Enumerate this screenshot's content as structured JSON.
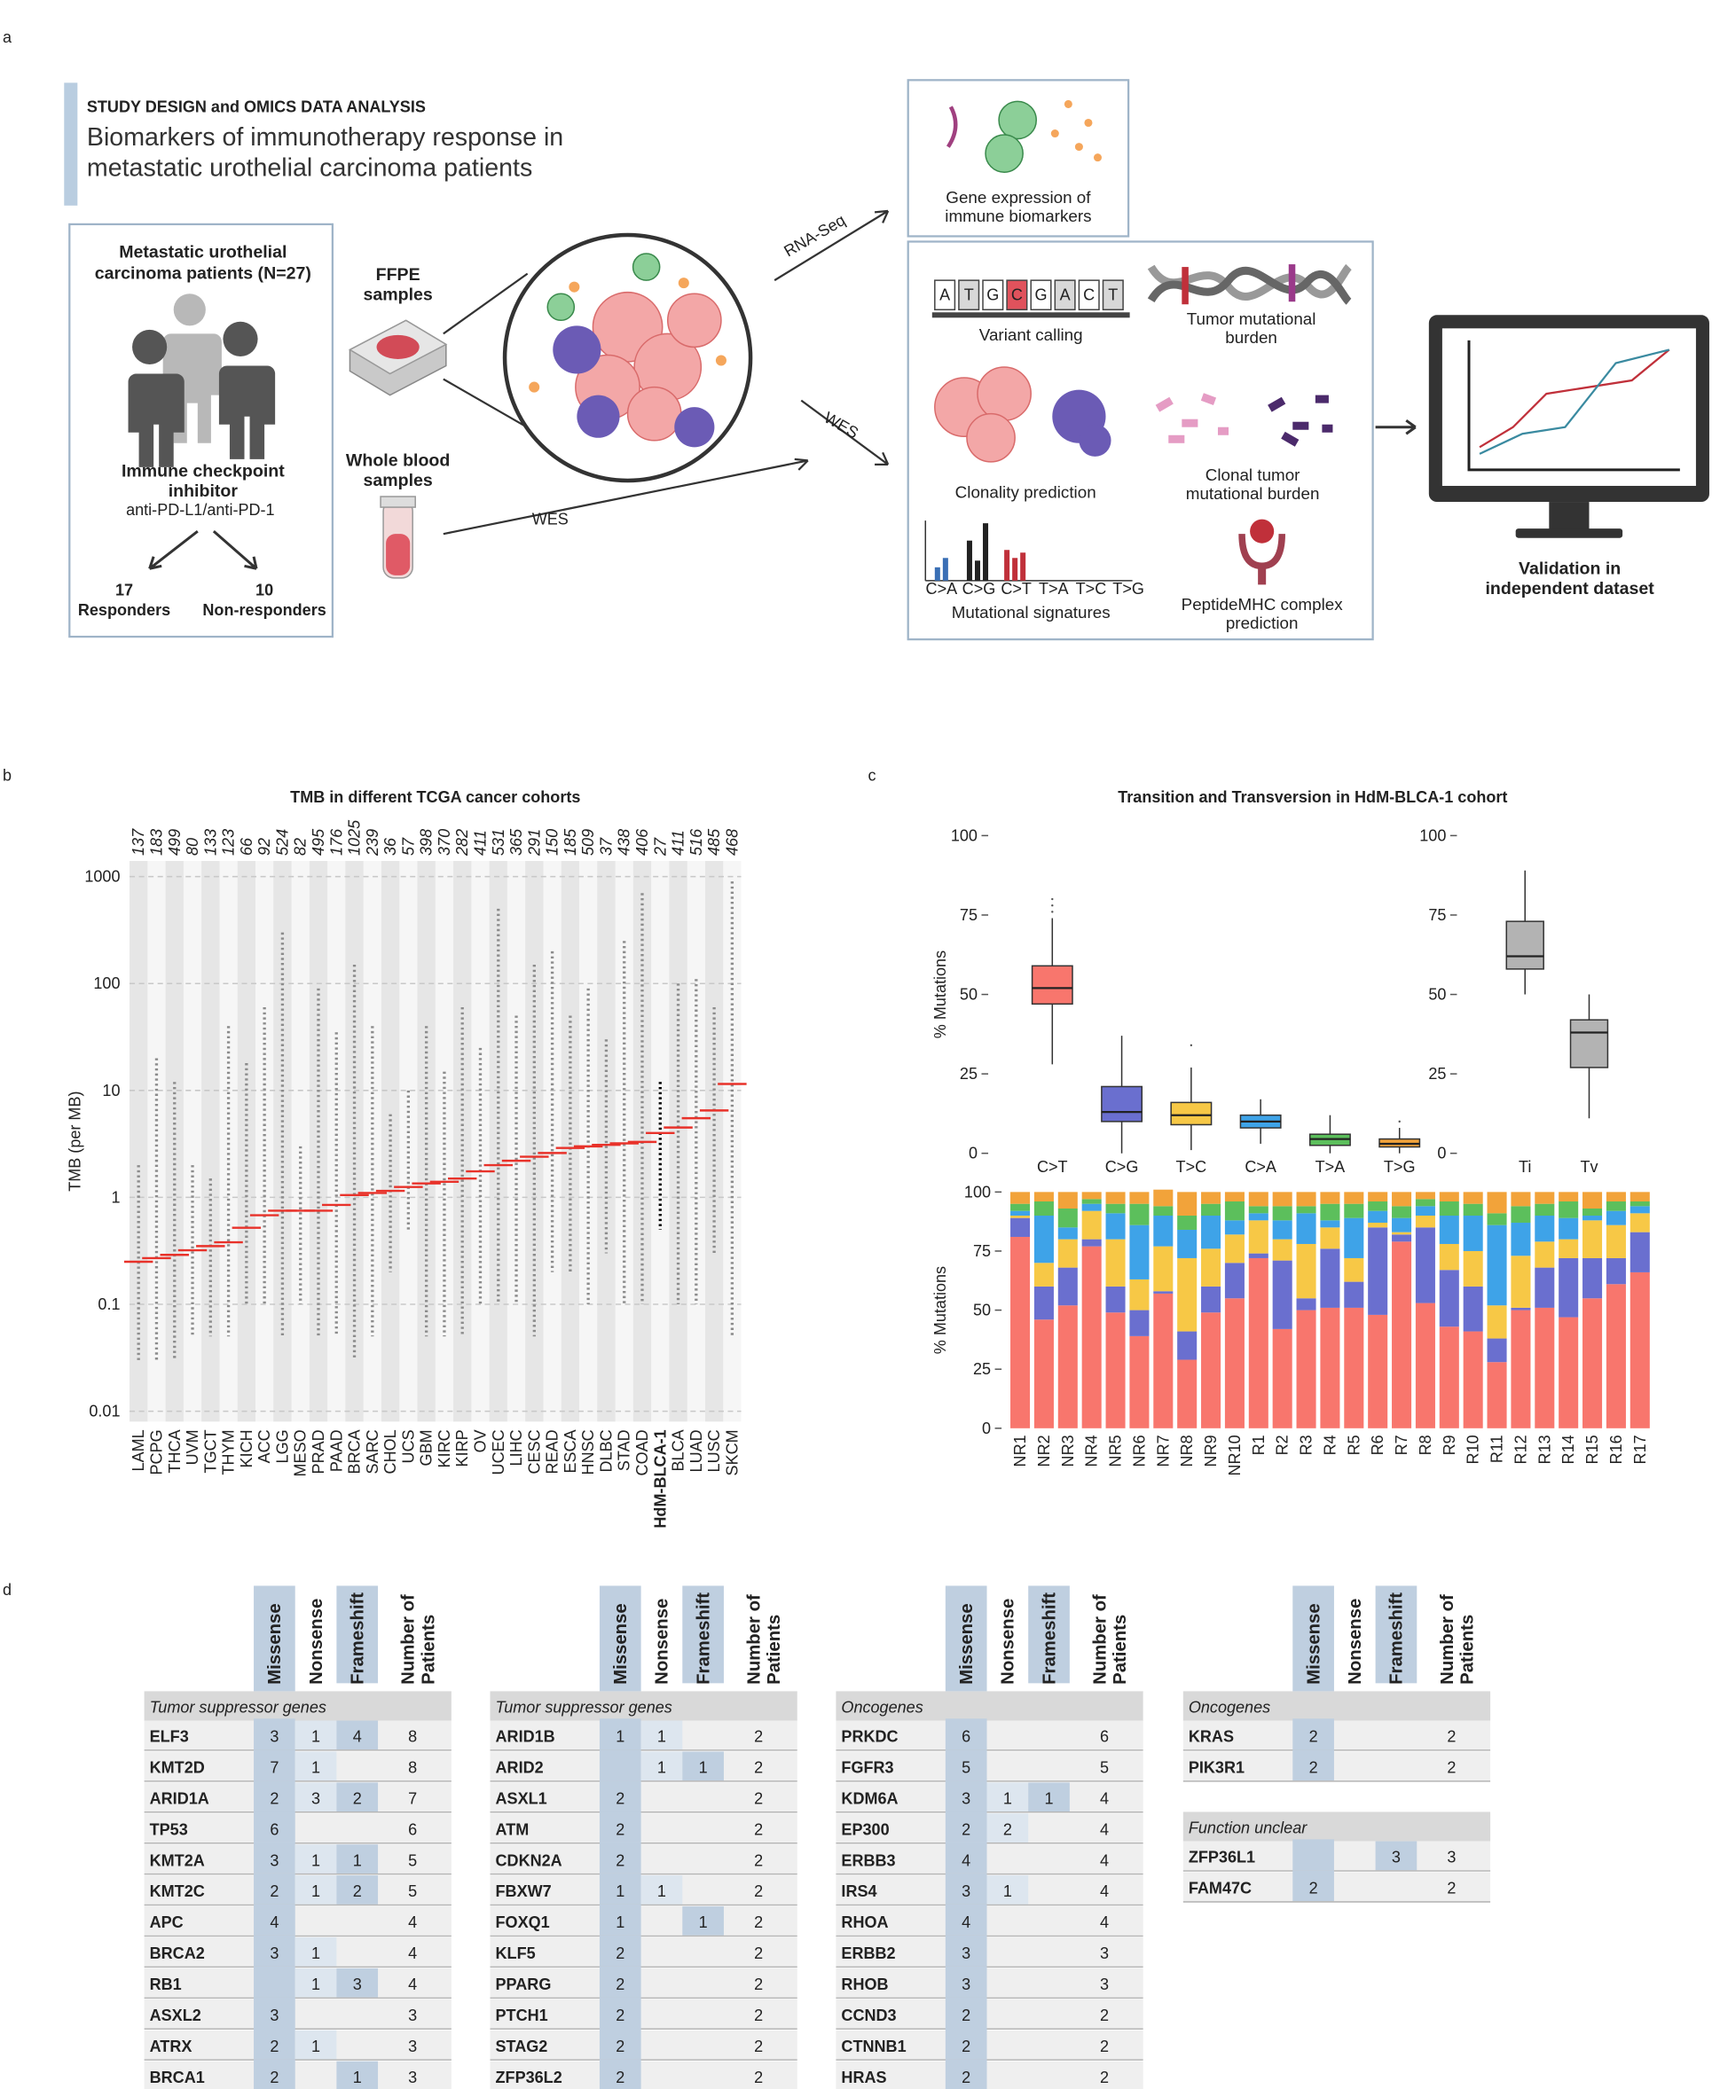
{
  "panel_labels": [
    "a",
    "b",
    "c",
    "d"
  ],
  "study_design": {
    "title": "STUDY DESIGN and OMICS DATA ANALYSIS",
    "subtitle": "Biomarkers of immunotherapy response in metastatic urothelial carcinoma patients",
    "patients": "Metastatic urothelial carcinoma patients (N=27)",
    "treatment": "Immune checkpoint inhibitor",
    "drugs": "anti-PD-L1/anti-PD-1",
    "groups": [
      {
        "count": 17,
        "label": "Responders"
      },
      {
        "count": 10,
        "label": "Non-responders"
      }
    ],
    "samples": [
      "FFPE samples",
      "Whole blood samples"
    ],
    "arrows": [
      "RNA-Seq",
      "WES",
      "WES"
    ],
    "expression": "Gene expression of immune biomarkers",
    "bases": [
      "A",
      "T",
      "G",
      "C",
      "G",
      "A",
      "C",
      "T"
    ],
    "analyses": [
      "Variant calling",
      "Tumor mutational burden",
      "Clonality prediction",
      "Clonal tumor mutational burden",
      "Mutational signatures",
      "PeptideMHC complex prediction"
    ],
    "signature_axis": [
      "C>A",
      "C>G",
      "C>T",
      "T>A",
      "T>C",
      "T>G"
    ],
    "validation": "Validation in independent dataset"
  },
  "chart_data": [
    {
      "type": "strip",
      "title": "TMB in different TCGA cancer cohorts",
      "y_label": "TMB (per MB)",
      "categories": [
        "LAML",
        "PCPG",
        "THCA",
        "UVM",
        "TGCT",
        "THYM",
        "KICH",
        "ACC",
        "LGG",
        "MESO",
        "PRAD",
        "PAAD",
        "BRCA",
        "SARC",
        "CHOL",
        "UCS",
        "GBM",
        "KIRC",
        "KIRP",
        "OV",
        "UCEC",
        "LIHC",
        "CESC",
        "READ",
        "ESCA",
        "HNSC",
        "DLBC",
        "STAD",
        "COAD",
        "HdM-BLCA-1",
        "BLCA",
        "LUAD",
        "LUSC",
        "SKCM"
      ],
      "sample_counts": [
        137,
        183,
        499,
        80,
        133,
        123,
        66,
        92,
        524,
        82,
        495,
        176,
        1025,
        239,
        36,
        57,
        398,
        370,
        282,
        411,
        531,
        365,
        291,
        150,
        185,
        509,
        37,
        438,
        406,
        27,
        411,
        516,
        485,
        468
      ],
      "medians": [
        0.25,
        0.27,
        0.29,
        0.32,
        0.35,
        0.38,
        0.52,
        0.68,
        0.75,
        0.75,
        0.75,
        0.85,
        1.05,
        1.1,
        1.15,
        1.25,
        1.35,
        1.4,
        1.5,
        1.75,
        2.0,
        2.2,
        2.4,
        2.6,
        2.9,
        3.0,
        3.1,
        3.2,
        3.3,
        4.0,
        4.5,
        5.5,
        6.5,
        11.5
      ],
      "mins": [
        0.03,
        0.03,
        0.03,
        0.05,
        0.05,
        0.05,
        0.1,
        0.1,
        0.05,
        0.1,
        0.05,
        0.05,
        0.03,
        0.05,
        0.2,
        0.5,
        0.05,
        0.05,
        0.05,
        0.1,
        0.1,
        0.1,
        0.05,
        0.2,
        0.2,
        0.1,
        0.3,
        0.1,
        0.1,
        0.5,
        0.1,
        0.1,
        0.3,
        0.05
      ],
      "maxs": [
        2,
        20,
        12,
        2,
        1.5,
        40,
        18,
        60,
        300,
        3,
        90,
        35,
        150,
        40,
        6,
        10,
        40,
        15,
        60,
        25,
        500,
        50,
        150,
        200,
        50,
        90,
        30,
        250,
        700,
        12,
        100,
        110,
        60,
        900
      ],
      "highlight": 29,
      "log_y": true,
      "ylim": [
        0.008,
        1400
      ],
      "yticks": [
        0.01,
        0.1,
        1,
        10,
        100,
        1000
      ],
      "grid": true,
      "point_color": "#8c8c8c",
      "highlight_color": "#000000",
      "median_color": "#e8322a"
    },
    {
      "type": "box",
      "title": "Transition and Transversion in HdM-BLCA-1 cohort",
      "y_label": "% Mutations",
      "categories": [
        "C>T",
        "C>G",
        "T>C",
        "C>A",
        "T>A",
        "T>G"
      ],
      "whisker_low": [
        28,
        0,
        1,
        3,
        0,
        0
      ],
      "q1": [
        47,
        10,
        9,
        8,
        2.5,
        2
      ],
      "median": [
        52,
        13,
        12,
        10,
        4.5,
        3
      ],
      "q3": [
        59,
        21,
        16,
        12,
        6,
        4.5
      ],
      "whisker_high": [
        74,
        37,
        27,
        17,
        12,
        8
      ],
      "outliers": [
        [
          76,
          78,
          80
        ],
        [],
        [
          34
        ],
        [],
        [],
        [
          10
        ]
      ],
      "colors": [
        "#f8766d",
        "#6a6fcf",
        "#f7c846",
        "#3ea3e8",
        "#5cbf5c",
        "#f2a33a"
      ],
      "ylim": [
        0,
        100
      ],
      "yticks": [
        0,
        25,
        50,
        75,
        100
      ]
    },
    {
      "type": "box",
      "categories": [
        "Ti",
        "Tv"
      ],
      "whisker_low": [
        50,
        11
      ],
      "q1": [
        58,
        27
      ],
      "median": [
        62,
        38
      ],
      "q3": [
        73,
        42
      ],
      "whisker_high": [
        89,
        50
      ],
      "outliers": [
        [],
        []
      ],
      "colors": [
        "#b3b3b3",
        "#b3b3b3"
      ],
      "ylim": [
        0,
        100
      ],
      "yticks": [
        0,
        25,
        50,
        75,
        100
      ]
    },
    {
      "type": "stacked_bar",
      "y_label": "% Mutations",
      "categories": [
        "NR1",
        "NR2",
        "NR3",
        "NR4",
        "NR5",
        "NR6",
        "NR7",
        "NR8",
        "NR9",
        "NR10",
        "R1",
        "R2",
        "R3",
        "R4",
        "R5",
        "R6",
        "R7",
        "R8",
        "R9",
        "R10",
        "R11",
        "R12",
        "R13",
        "R14",
        "R15",
        "R16",
        "R17"
      ],
      "series": [
        {
          "color": "#f8766d",
          "values": [
            81,
            46,
            52,
            77,
            49,
            39,
            57,
            29,
            49,
            55,
            72,
            42,
            50,
            51,
            51,
            48,
            79,
            53,
            43,
            41,
            28,
            50,
            51,
            47,
            55,
            61,
            66
          ]
        },
        {
          "color": "#6a6fcf",
          "values": [
            8,
            14,
            16,
            3,
            11,
            11,
            1,
            12,
            11,
            15,
            2,
            29,
            5,
            25,
            11,
            37,
            3,
            32,
            24,
            19,
            10,
            1,
            17,
            25,
            17,
            11,
            17
          ]
        },
        {
          "color": "#f7c846",
          "values": [
            1,
            10,
            12,
            12,
            20,
            13,
            19,
            31,
            16,
            12,
            14,
            9,
            23,
            9,
            10,
            2,
            1,
            5,
            11,
            15,
            14,
            22,
            11,
            8,
            16,
            14,
            8
          ]
        },
        {
          "color": "#3ea3e8",
          "values": [
            2,
            20,
            5,
            3,
            11,
            23,
            13,
            12,
            14,
            6,
            3,
            8,
            13,
            3,
            17,
            5,
            6,
            4,
            12,
            15,
            34,
            14,
            11,
            9,
            2,
            6,
            3
          ]
        },
        {
          "color": "#5cbf5c",
          "values": [
            3,
            6,
            8,
            2,
            4,
            9,
            4,
            6,
            5,
            8,
            3,
            6,
            3,
            7,
            6,
            4,
            5,
            3,
            6,
            5,
            5,
            7,
            5,
            7,
            3,
            4,
            2
          ]
        },
        {
          "color": "#f2a33a",
          "values": [
            5,
            4,
            7,
            3,
            5,
            5,
            7,
            10,
            5,
            4,
            6,
            6,
            6,
            5,
            5,
            4,
            6,
            3,
            4,
            5,
            9,
            6,
            5,
            4,
            7,
            4,
            4
          ]
        }
      ],
      "ylim": [
        0,
        100
      ],
      "yticks": [
        0,
        25,
        50,
        75,
        100
      ]
    }
  ],
  "tables": [
    {
      "columns": [
        "Missense",
        "Nonsense",
        "Frameshift",
        "Number of Patients"
      ],
      "sections": [
        {
          "heading": "Tumor suppressor genes",
          "rows": [
            [
              "ELF3",
              3,
              1,
              4,
              8
            ],
            [
              "KMT2D",
              7,
              1,
              null,
              8
            ],
            [
              "ARID1A",
              2,
              3,
              2,
              7
            ],
            [
              "TP53",
              6,
              null,
              null,
              6
            ],
            [
              "KMT2A",
              3,
              1,
              1,
              5
            ],
            [
              "KMT2C",
              2,
              1,
              2,
              5
            ],
            [
              "APC",
              4,
              null,
              null,
              4
            ],
            [
              "BRCA2",
              3,
              1,
              null,
              4
            ],
            [
              "RB1",
              null,
              1,
              3,
              4
            ],
            [
              "ASXL2",
              3,
              null,
              null,
              3
            ],
            [
              "ATRX",
              2,
              1,
              null,
              3
            ],
            [
              "BRCA1",
              2,
              null,
              1,
              3
            ]
          ]
        }
      ]
    },
    {
      "columns": [
        "Missense",
        "Nonsense",
        "Frameshift",
        "Number of Patients"
      ],
      "sections": [
        {
          "heading": "Tumor suppressor genes",
          "rows": [
            [
              "ARID1B",
              1,
              1,
              null,
              2
            ],
            [
              "ARID2",
              null,
              1,
              1,
              2
            ],
            [
              "ASXL1",
              2,
              null,
              null,
              2
            ],
            [
              "ATM",
              2,
              null,
              null,
              2
            ],
            [
              "CDKN2A",
              2,
              null,
              null,
              2
            ],
            [
              "FBXW7",
              1,
              1,
              null,
              2
            ],
            [
              "FOXQ1",
              1,
              null,
              1,
              2
            ],
            [
              "KLF5",
              2,
              null,
              null,
              2
            ],
            [
              "PPARG",
              2,
              null,
              null,
              2
            ],
            [
              "PTCH1",
              2,
              null,
              null,
              2
            ],
            [
              "STAG2",
              2,
              null,
              null,
              2
            ],
            [
              "ZFP36L2",
              2,
              null,
              null,
              2
            ]
          ]
        }
      ]
    },
    {
      "columns": [
        "Missense",
        "Nonsense",
        "Frameshift",
        "Number of Patients"
      ],
      "sections": [
        {
          "heading": "Oncogenes",
          "rows": [
            [
              "PRKDC",
              6,
              null,
              null,
              6
            ],
            [
              "FGFR3",
              5,
              null,
              null,
              5
            ],
            [
              "KDM6A",
              3,
              1,
              1,
              4
            ],
            [
              "EP300",
              2,
              2,
              null,
              4
            ],
            [
              "ERBB3",
              4,
              null,
              null,
              4
            ],
            [
              "IRS4",
              3,
              1,
              null,
              4
            ],
            [
              "RHOA",
              4,
              null,
              null,
              4
            ],
            [
              "ERBB2",
              3,
              null,
              null,
              3
            ],
            [
              "RHOB",
              3,
              null,
              null,
              3
            ],
            [
              "CCND3",
              2,
              null,
              null,
              2
            ],
            [
              "CTNNB1",
              2,
              null,
              null,
              2
            ],
            [
              "HRAS",
              2,
              null,
              null,
              2
            ]
          ]
        }
      ]
    },
    {
      "columns": [
        "Missense",
        "Nonsense",
        "Frameshift",
        "Number of Patients"
      ],
      "sections": [
        {
          "heading": "Oncogenes",
          "rows": [
            [
              "KRAS",
              2,
              null,
              null,
              2
            ],
            [
              "PIK3R1",
              2,
              null,
              null,
              2
            ]
          ]
        },
        {
          "heading": "Function unclear",
          "rows": [
            [
              "ZFP36L1",
              null,
              null,
              3,
              3
            ],
            [
              "FAM47C",
              2,
              null,
              null,
              2
            ]
          ]
        }
      ]
    }
  ]
}
